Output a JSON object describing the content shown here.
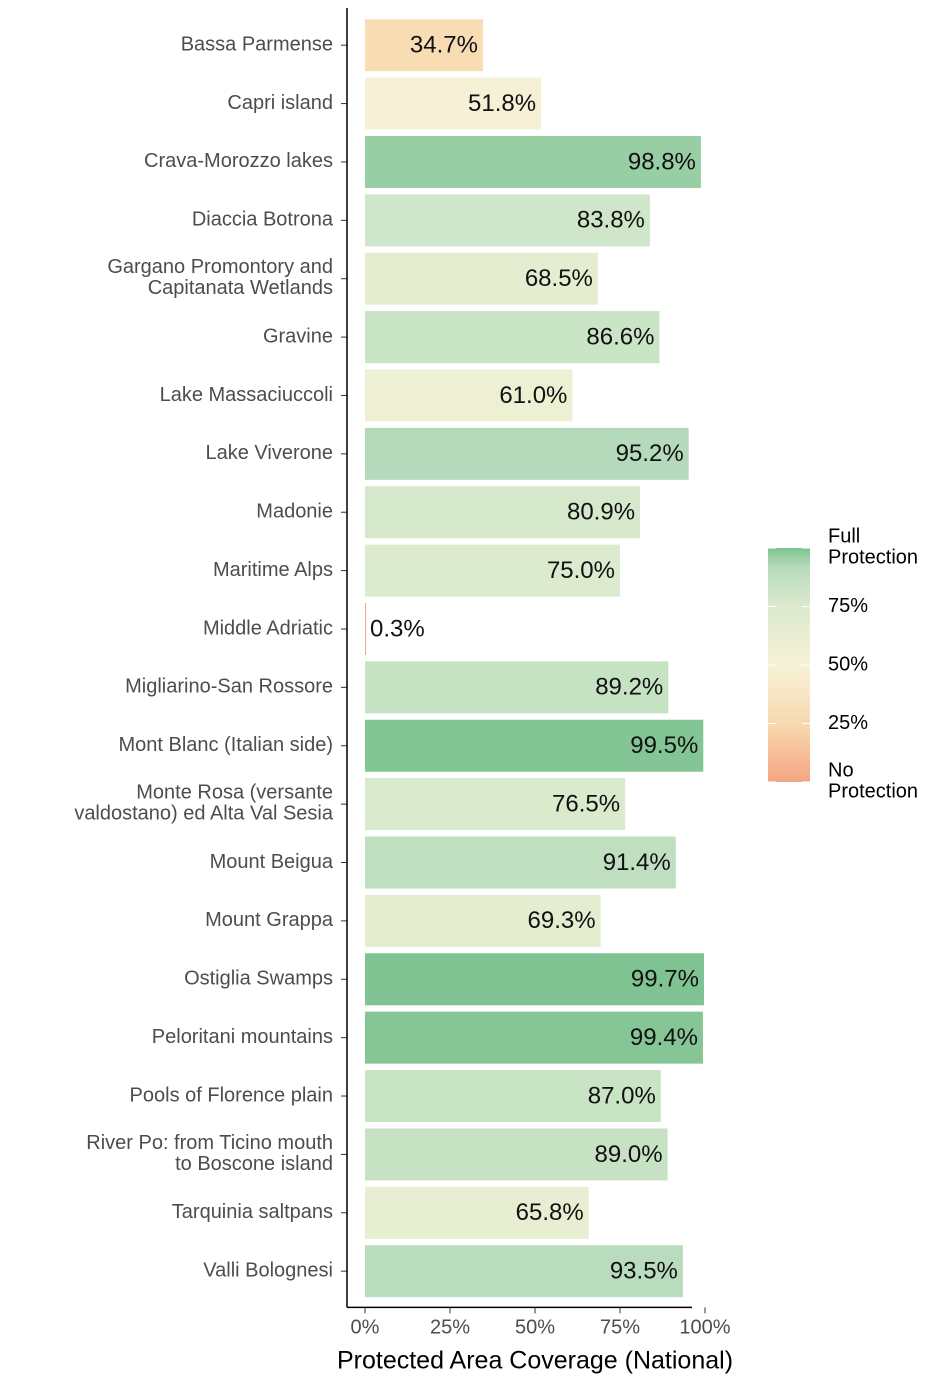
{
  "chart_data": {
    "type": "barh",
    "categories": [
      "Bassa Parmense",
      "Capri island",
      "Crava-Morozzo lakes",
      "Diaccia Botrona",
      "Gargano Promontory and\nCapitanata Wetlands",
      "Gravine",
      "Lake Massaciuccoli",
      "Lake Viverone",
      "Madonie",
      "Maritime Alps",
      "Middle Adriatic",
      "Migliarino-San Rossore",
      "Mont Blanc (Italian side)",
      "Monte Rosa (versante\nvaldostano) ed Alta Val Sesia",
      "Mount Beigua",
      "Mount Grappa",
      "Ostiglia Swamps",
      "Peloritani mountains",
      "Pools of Florence plain",
      "River Po: from Ticino mouth\nto Boscone island",
      "Tarquinia saltpans",
      "Valli Bolognesi"
    ],
    "values": [
      34.7,
      51.8,
      98.8,
      83.8,
      68.5,
      86.6,
      61.0,
      95.2,
      80.9,
      75.0,
      0.3,
      89.2,
      99.5,
      76.5,
      91.4,
      69.3,
      99.7,
      99.4,
      87.0,
      89.0,
      65.8,
      93.5
    ],
    "value_labels": [
      "34.7%",
      "51.8%",
      "98.8%",
      "83.8%",
      "68.5%",
      "86.6%",
      "61.0%",
      "95.2%",
      "80.9%",
      "75.0%",
      "0.3%",
      "89.2%",
      "99.5%",
      "76.5%",
      "91.4%",
      "69.3%",
      "99.7%",
      "99.4%",
      "87.0%",
      "89.0%",
      "65.8%",
      "93.5%"
    ],
    "colors": [
      "#F8DDB4",
      "#F6F1D6",
      "#98CEA4",
      "#D0E6CA",
      "#E5EDD0",
      "#CAE4C6",
      "#EEF0D3",
      "#B5DABB",
      "#D5E8CB",
      "#DCEACE",
      "#F4A582",
      "#C5E2C3",
      "#84C595",
      "#DAEACD",
      "#BFDFC0",
      "#E4EDD0",
      "#7EC391",
      "#86C596",
      "#C9E4C5",
      "#C6E2C3",
      "#E8EED1",
      "#BADCBE"
    ],
    "xlabel": "Protected Area Coverage (National)",
    "xlim": [
      -5,
      105
    ],
    "xticks": [
      {
        "value": 0,
        "label": "0%"
      },
      {
        "value": 25,
        "label": "25%"
      },
      {
        "value": 50,
        "label": "50%"
      },
      {
        "value": 75,
        "label": "75%"
      },
      {
        "value": 100,
        "label": "100%"
      }
    ],
    "legend": {
      "position": "right",
      "ticks": [
        {
          "value": 100,
          "label": "Full\nProtection"
        },
        {
          "value": 75,
          "label": "75%"
        },
        {
          "value": 50,
          "label": "50%"
        },
        {
          "value": 25,
          "label": "25%"
        },
        {
          "value": 0,
          "label": "No\nProtection"
        }
      ],
      "gradient": [
        {
          "value": 100,
          "color": "#7EC391"
        },
        {
          "value": 92,
          "color": "#B5DABB"
        },
        {
          "value": 75,
          "color": "#DCEACE"
        },
        {
          "value": 50,
          "color": "#F7F2D7"
        },
        {
          "value": 25,
          "color": "#F8D9B0"
        },
        {
          "value": 0,
          "color": "#F4A582"
        }
      ]
    }
  }
}
